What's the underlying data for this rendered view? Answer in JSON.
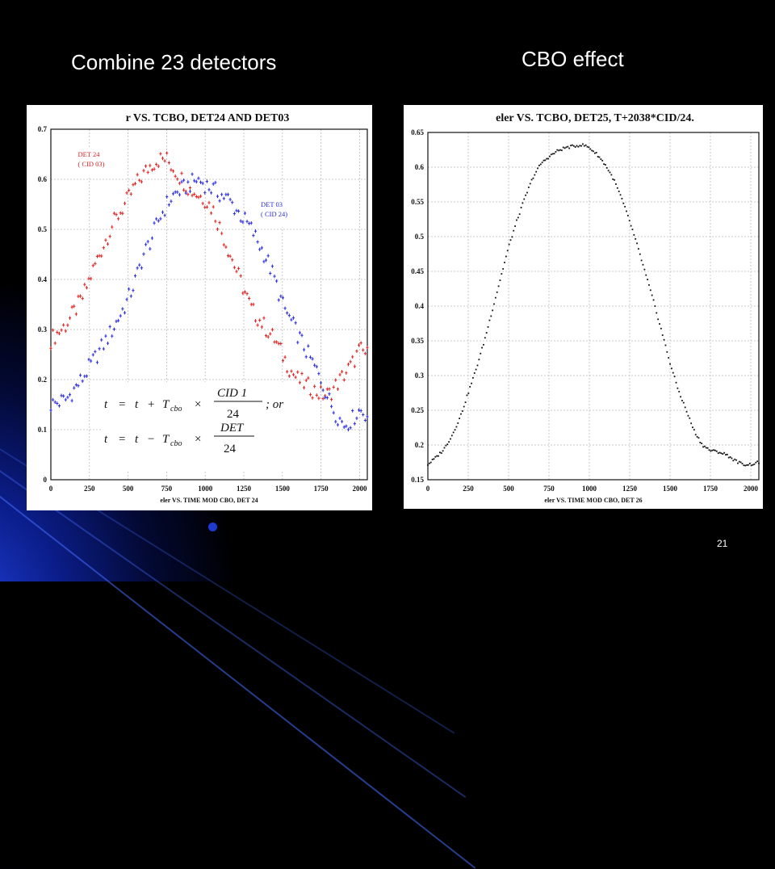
{
  "slide": {
    "left_heading": "Combine 23 detectors",
    "right_heading": "CBO effect",
    "page_number": "21"
  },
  "chart_data": [
    {
      "type": "scatter",
      "title": "r VS. TCBO, DET24 AND DET03",
      "xlabel": "eler VS. TIME MOD CBO, DET 24",
      "ylabel": "",
      "xlim": [
        0,
        2050
      ],
      "ylim": [
        0,
        0.7
      ],
      "xticks": [
        "0",
        "250",
        "500",
        "750",
        "1000",
        "1250",
        "1500",
        "1750",
        "2000"
      ],
      "yticks": [
        "0",
        "0.1",
        "0.2",
        "0.3",
        "0.4",
        "0.5",
        "0.6",
        "0.7"
      ],
      "grid": true,
      "series": [
        {
          "name": "DET 24 (CID 03)",
          "color": "#e02020",
          "x": [
            0,
            100,
            200,
            300,
            400,
            500,
            550,
            600,
            650,
            700,
            750,
            800,
            850,
            900,
            950,
            1000,
            1050,
            1100,
            1150,
            1200,
            1250,
            1300,
            1350,
            1400,
            1450,
            1500,
            1550,
            1600,
            1650,
            1700,
            1750,
            1800,
            1850,
            1900,
            1950,
            2000,
            2050
          ],
          "y": [
            0.28,
            0.31,
            0.36,
            0.44,
            0.51,
            0.56,
            0.59,
            0.61,
            0.63,
            0.64,
            0.64,
            0.62,
            0.6,
            0.58,
            0.57,
            0.56,
            0.54,
            0.5,
            0.46,
            0.42,
            0.38,
            0.34,
            0.32,
            0.3,
            0.28,
            0.25,
            0.22,
            0.2,
            0.19,
            0.18,
            0.17,
            0.17,
            0.19,
            0.21,
            0.23,
            0.26,
            0.25
          ]
        },
        {
          "name": "DET 03 (CID 24)",
          "color": "#2a2ae0",
          "x": [
            0,
            100,
            200,
            300,
            400,
            500,
            550,
            600,
            650,
            700,
            750,
            800,
            850,
            900,
            950,
            1000,
            1050,
            1100,
            1150,
            1200,
            1250,
            1300,
            1350,
            1400,
            1450,
            1500,
            1550,
            1600,
            1650,
            1700,
            1750,
            1800,
            1850,
            1900,
            1950,
            2000,
            2050
          ],
          "y": [
            0.15,
            0.16,
            0.2,
            0.25,
            0.3,
            0.36,
            0.4,
            0.45,
            0.48,
            0.52,
            0.55,
            0.57,
            0.58,
            0.59,
            0.6,
            0.59,
            0.58,
            0.57,
            0.56,
            0.54,
            0.52,
            0.5,
            0.47,
            0.44,
            0.4,
            0.35,
            0.32,
            0.29,
            0.26,
            0.23,
            0.2,
            0.16,
            0.13,
            0.11,
            0.12,
            0.14,
            0.13
          ]
        }
      ],
      "annotations": [
        {
          "label": "DET 24",
          "sub": "( CID 03)",
          "color": "#e02020",
          "x": 175,
          "y": 0.645
        },
        {
          "label": "DET 03",
          "sub": "( CID 24)",
          "color": "#2a2ae0",
          "x": 1360,
          "y": 0.545
        }
      ],
      "formula": {
        "line1": {
          "lhs": "t",
          "eq": "=",
          "t": "t",
          "plus": "+",
          "T": "T",
          "sub": "cbo",
          "times": "×",
          "num": "CID  1",
          "den": "24",
          "suffix": "; or"
        },
        "line2": {
          "lhs": "t",
          "eq": "=",
          "t": "t",
          "minus": "−",
          "T": "T",
          "sub": "cbo",
          "times": "×",
          "num": "DET",
          "den": "24"
        }
      }
    },
    {
      "type": "scatter",
      "title": "eler VS. TCBO, DET25, T+2038*CID/24.",
      "xlabel": "eler VS. TIME MOD CBO, DET 26",
      "ylabel": "",
      "xlim": [
        0,
        2050
      ],
      "ylim": [
        0.15,
        0.65
      ],
      "xticks": [
        "0",
        "250",
        "500",
        "750",
        "1000",
        "1250",
        "1500",
        "1750",
        "2000"
      ],
      "yticks": [
        "0.15",
        "0.2",
        "0.25",
        "0.3",
        "0.35",
        "0.4",
        "0.45",
        "0.5",
        "0.55",
        "0.6",
        "0.65"
      ],
      "grid": true,
      "series": [
        {
          "name": "",
          "color": "#111111",
          "x": [
            0,
            50,
            100,
            150,
            200,
            250,
            300,
            350,
            400,
            450,
            500,
            550,
            600,
            650,
            700,
            750,
            800,
            850,
            900,
            950,
            975,
            1000,
            1050,
            1100,
            1150,
            1200,
            1250,
            1300,
            1350,
            1400,
            1450,
            1500,
            1550,
            1600,
            1650,
            1700,
            1750,
            1800,
            1850,
            1900,
            1950,
            2000,
            2050
          ],
          "y": [
            0.172,
            0.182,
            0.194,
            0.214,
            0.24,
            0.275,
            0.31,
            0.35,
            0.395,
            0.44,
            0.485,
            0.522,
            0.555,
            0.585,
            0.605,
            0.615,
            0.623,
            0.628,
            0.63,
            0.632,
            0.631,
            0.628,
            0.618,
            0.603,
            0.583,
            0.555,
            0.522,
            0.485,
            0.445,
            0.405,
            0.362,
            0.318,
            0.28,
            0.25,
            0.22,
            0.2,
            0.192,
            0.19,
            0.186,
            0.178,
            0.172,
            0.172,
            0.175
          ]
        }
      ]
    }
  ]
}
